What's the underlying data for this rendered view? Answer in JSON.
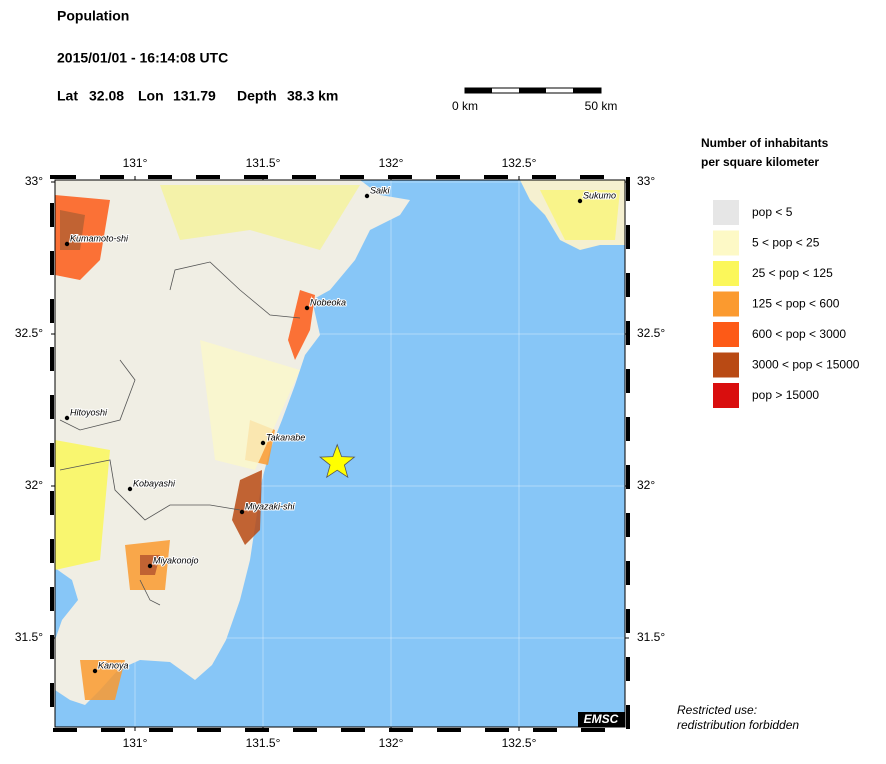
{
  "header": {
    "title": "Population",
    "datetime": "2015/01/01 - 16:14:08 UTC",
    "lat_label": "Lat",
    "lat": 32.08,
    "lon_label": "Lon",
    "lon": 131.79,
    "depth_label": "Depth",
    "depth": "38.3 km"
  },
  "scale_bar": {
    "start": "0 km",
    "end": "50 km"
  },
  "map": {
    "lon_ticks": [
      {
        "value": 131,
        "label": "131°"
      },
      {
        "value": 131.5,
        "label": "131.5°"
      },
      {
        "value": 132,
        "label": "132°"
      },
      {
        "value": 132.5,
        "label": "132.5°"
      }
    ],
    "lat_ticks": [
      {
        "value": 33,
        "label": "33°"
      },
      {
        "value": 32.5,
        "label": "32.5°"
      },
      {
        "value": 32,
        "label": "32°"
      },
      {
        "value": 31.5,
        "label": "31.5°"
      }
    ],
    "cities": [
      "Saiki",
      "Sukumo",
      "Kumamoto-shi",
      "Nobeoka",
      "Hitoyoshi",
      "Takanabe",
      "Kobayashi",
      "Miyazaki-shi",
      "Miyakonojo",
      "Kanoya"
    ],
    "logo": "EMSC"
  },
  "legend": {
    "title_line1": "Number of inhabitants",
    "title_line2": "per square kilometer",
    "items": [
      {
        "label": "pop < 5",
        "color": "#e6e6e6"
      },
      {
        "label": "5 < pop < 25",
        "color": "#fdf9c6"
      },
      {
        "label": "25 < pop < 125",
        "color": "#fbf75a"
      },
      {
        "label": "125 < pop < 600",
        "color": "#fb9a2f"
      },
      {
        "label": "600 < pop < 3000",
        "color": "#fd5a17"
      },
      {
        "label": "3000 < pop < 15000",
        "color": "#b94a14"
      },
      {
        "label": "pop > 15000",
        "color": "#d90e0e"
      }
    ]
  },
  "footer": {
    "line1": "Restricted use:",
    "line2": "redistribution forbidden"
  }
}
